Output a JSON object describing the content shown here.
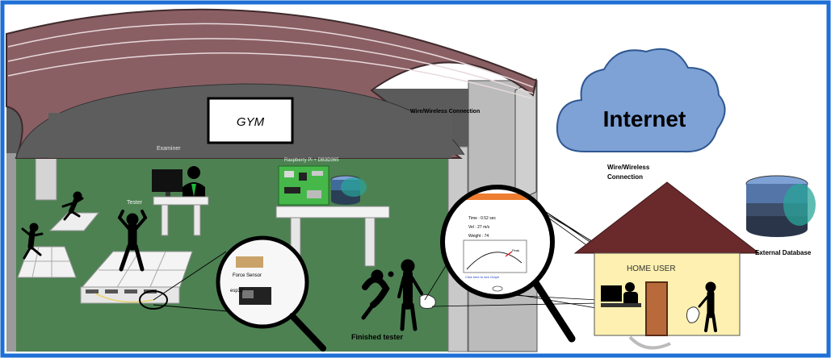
{
  "gym": {
    "sign": "GYM",
    "labels": {
      "examiner": "Examiner",
      "tester": "Tester",
      "raspberry": "Raspberry Pi  +  DB3D365",
      "force_sensor": "Force Sensor",
      "esp": "esp32",
      "finished_tester": "Finished tester"
    }
  },
  "connections": {
    "top_label": "Wire/Wireless Connection",
    "right_label_line1": "Wire/Wireless",
    "right_label_line2": "Connection"
  },
  "cloud": {
    "label": "Internet"
  },
  "home": {
    "label": "HOME USER"
  },
  "database": {
    "label": "External Database"
  },
  "phone_screen": {
    "line1": "Time : 0.52 sec",
    "line2": "Vel : 27 m/s",
    "line3": "Weight : 74",
    "peak_label": "Peak",
    "link": "Click here to see Graph"
  },
  "colors": {
    "roof": "#8a5f64",
    "floor": "#4d8152",
    "wall": "#5a5a5a",
    "cloud": "#7ea2d6",
    "house_wall": "#fdf0b0",
    "house_roof": "#6a2a2c",
    "door": "#b86a3a",
    "frame": "#1e6fd6"
  }
}
